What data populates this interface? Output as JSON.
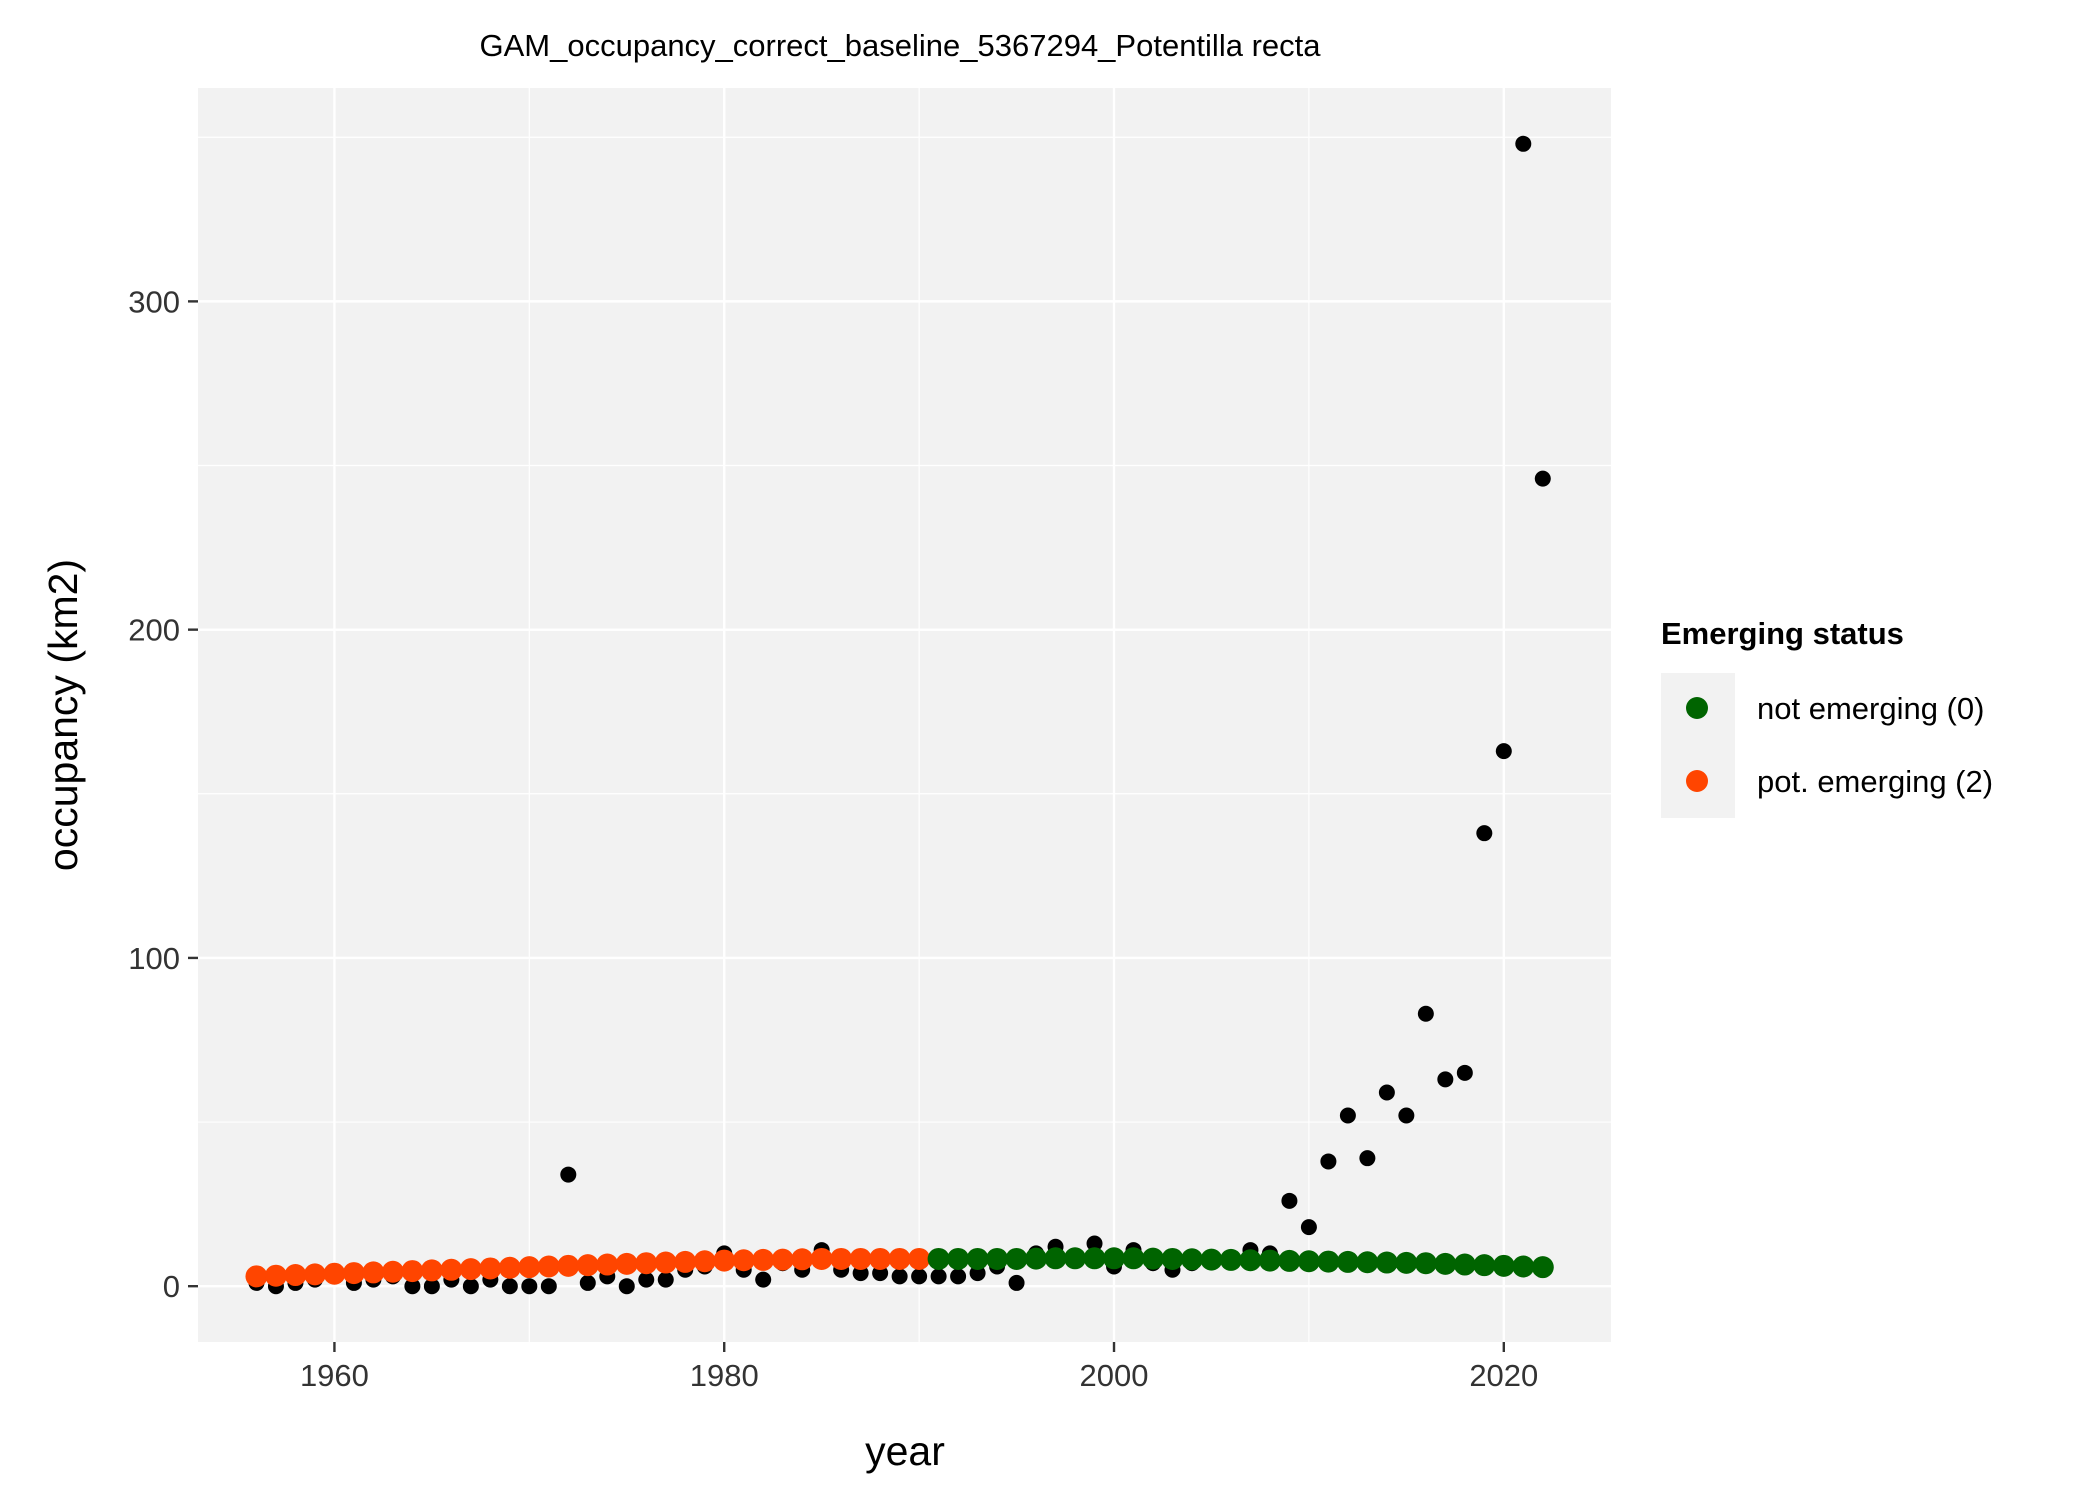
{
  "chart_data": {
    "type": "scatter",
    "title": "GAM_occupancy_correct_baseline_5367294_Potentilla recta",
    "xlabel": "year",
    "ylabel": "occupancy (km2)",
    "xlim": [
      1953,
      2025.5
    ],
    "ylim": [
      -17,
      365
    ],
    "x_ticks": [
      1960,
      1980,
      2000,
      2020
    ],
    "y_ticks": [
      0,
      100,
      200,
      300
    ],
    "panel_background": "#f2f2f2",
    "grid": true,
    "legend": {
      "title": "Emerging status",
      "position": "right",
      "entries": [
        {
          "label": "not emerging (0)",
          "color": "#006400"
        },
        {
          "label": "pot. emerging (2)",
          "color": "#ff4500"
        }
      ]
    },
    "observed": {
      "color": "#000000",
      "x": [
        1956,
        1957,
        1958,
        1959,
        1961,
        1962,
        1963,
        1964,
        1965,
        1966,
        1967,
        1968,
        1969,
        1970,
        1971,
        1972,
        1973,
        1974,
        1975,
        1976,
        1977,
        1978,
        1979,
        1980,
        1981,
        1982,
        1983,
        1984,
        1985,
        1986,
        1987,
        1988,
        1989,
        1990,
        1991,
        1992,
        1993,
        1994,
        1995,
        1996,
        1997,
        1998,
        1999,
        2000,
        2001,
        2002,
        2003,
        2004,
        2005,
        2006,
        2007,
        2008,
        2009,
        2010,
        2011,
        2012,
        2013,
        2014,
        2015,
        2016,
        2017,
        2018,
        2019,
        2020,
        2021,
        2022
      ],
      "y": [
        1,
        0,
        1,
        2,
        1,
        2,
        3,
        0,
        0,
        2,
        0,
        2,
        0,
        0,
        0,
        34,
        1,
        3,
        0,
        2,
        2,
        5,
        6,
        10,
        5,
        2,
        7,
        5,
        11,
        5,
        4,
        4,
        3,
        3,
        3,
        3,
        4,
        6,
        1,
        10,
        12,
        9,
        13,
        6,
        11,
        7,
        5,
        7,
        8,
        8,
        11,
        10,
        26,
        18,
        38,
        52,
        39,
        59,
        52,
        83,
        63,
        65,
        138,
        163,
        348,
        246
      ]
    },
    "fitted": {
      "x": [
        1956,
        1957,
        1958,
        1959,
        1960,
        1961,
        1962,
        1963,
        1964,
        1965,
        1966,
        1967,
        1968,
        1969,
        1970,
        1971,
        1972,
        1973,
        1974,
        1975,
        1976,
        1977,
        1978,
        1979,
        1980,
        1981,
        1982,
        1983,
        1984,
        1985,
        1986,
        1987,
        1988,
        1989,
        1990,
        1991,
        1992,
        1993,
        1994,
        1995,
        1996,
        1997,
        1998,
        1999,
        2000,
        2001,
        2002,
        2003,
        2004,
        2005,
        2006,
        2007,
        2008,
        2009,
        2010,
        2011,
        2012,
        2013,
        2014,
        2015,
        2016,
        2017,
        2018,
        2019,
        2020,
        2021,
        2022
      ],
      "y": [
        3,
        3.2,
        3.4,
        3.6,
        3.8,
        4,
        4.2,
        4.4,
        4.6,
        4.8,
        5,
        5.2,
        5.4,
        5.6,
        5.8,
        6,
        6.2,
        6.4,
        6.6,
        6.8,
        7,
        7.2,
        7.4,
        7.6,
        7.8,
        7.9,
        8,
        8.1,
        8.2,
        8.3,
        8.3,
        8.3,
        8.3,
        8.3,
        8.3,
        8.3,
        8.3,
        8.3,
        8.3,
        8.3,
        8.4,
        8.5,
        8.5,
        8.5,
        8.5,
        8.5,
        8.4,
        8.3,
        8.2,
        8.1,
        8,
        7.9,
        7.8,
        7.7,
        7.6,
        7.5,
        7.4,
        7.3,
        7.2,
        7.1,
        7,
        6.8,
        6.6,
        6.4,
        6.2,
        6,
        5.8
      ],
      "status": [
        2,
        2,
        2,
        2,
        2,
        2,
        2,
        2,
        2,
        2,
        2,
        2,
        2,
        2,
        2,
        2,
        2,
        2,
        2,
        2,
        2,
        2,
        2,
        2,
        2,
        2,
        2,
        2,
        2,
        2,
        2,
        2,
        2,
        2,
        2,
        0,
        0,
        0,
        0,
        0,
        0,
        0,
        0,
        0,
        0,
        0,
        0,
        0,
        0,
        0,
        0,
        0,
        0,
        0,
        0,
        0,
        0,
        0,
        0,
        0,
        0,
        0,
        0,
        0,
        0,
        0,
        0
      ]
    }
  }
}
